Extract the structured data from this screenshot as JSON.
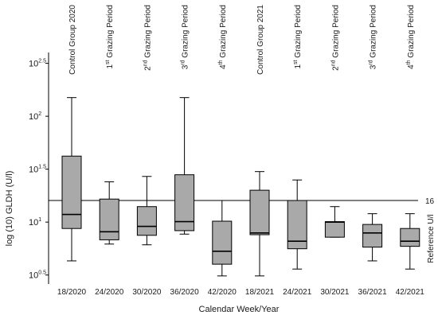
{
  "chart_data": {
    "type": "boxplot",
    "ylabel": "log (10) GLDH (U/l)",
    "xlabel": "Calendar Week/Year",
    "y_scale": "log10",
    "ylim": [
      2.6,
      400
    ],
    "y_ticks": [
      {
        "value": 3.1623,
        "base": "10",
        "exp": "0.5"
      },
      {
        "value": 10,
        "base": "10",
        "exp": "1"
      },
      {
        "value": 31.623,
        "base": "10",
        "exp": "1.5"
      },
      {
        "value": 100,
        "base": "10",
        "exp": "2"
      },
      {
        "value": 316.23,
        "base": "10",
        "exp": "2.5"
      }
    ],
    "categories": [
      "18/2020",
      "24/2020",
      "30/2020",
      "36/2020",
      "42/2020",
      "18/2021",
      "24/2021",
      "30/2021",
      "36/2021",
      "42/2021"
    ],
    "group_labels": [
      {
        "pre": "Control Group 2020",
        "sup": "",
        "post": ""
      },
      {
        "pre": "1",
        "sup": "st",
        "post": " Grazing Period"
      },
      {
        "pre": "2",
        "sup": "nd",
        "post": " Grazing Period"
      },
      {
        "pre": "3",
        "sup": "rd",
        "post": " Grazing Period"
      },
      {
        "pre": "4",
        "sup": "th",
        "post": " Grazing Period"
      },
      {
        "pre": "Control Group 2021",
        "sup": "",
        "post": ""
      },
      {
        "pre": "1",
        "sup": "st",
        "post": " Grazing Period"
      },
      {
        "pre": "2",
        "sup": "nd",
        "post": " Grazing Period"
      },
      {
        "pre": "3",
        "sup": "rd",
        "post": " Grazing Period"
      },
      {
        "pre": "4",
        "sup": "th",
        "post": " Grazing Period"
      }
    ],
    "boxes": [
      {
        "min": 4.3,
        "q1": 8.7,
        "median": 11.8,
        "q3": 42,
        "max": 150
      },
      {
        "min": 6.2,
        "q1": 6.8,
        "median": 8.1,
        "q3": 16.5,
        "max": 24
      },
      {
        "min": 6.1,
        "q1": 7.5,
        "median": 9.1,
        "q3": 14,
        "max": 27
      },
      {
        "min": 7.7,
        "q1": 8.3,
        "median": 10.1,
        "q3": 28,
        "max": 150
      },
      {
        "min": 3.1,
        "q1": 4.0,
        "median": 5.3,
        "q3": 10.2,
        "max": 16
      },
      {
        "min": 3.1,
        "q1": 7.6,
        "median": 7.9,
        "q3": 20,
        "max": 30
      },
      {
        "min": 3.6,
        "q1": 5.6,
        "median": 6.6,
        "q3": 16,
        "max": 25
      },
      {
        "min": 7.2,
        "q1": 7.2,
        "median": 10.0,
        "q3": 10.1,
        "max": 14
      },
      {
        "min": 4.3,
        "q1": 5.8,
        "median": 7.9,
        "q3": 9.5,
        "max": 12
      },
      {
        "min": 3.6,
        "q1": 5.9,
        "median": 6.6,
        "q3": 8.7,
        "max": 12
      }
    ],
    "reference_line": {
      "value": 16,
      "value_label": "16",
      "label": "Reference U/l"
    },
    "grid": false,
    "legend": "none"
  }
}
